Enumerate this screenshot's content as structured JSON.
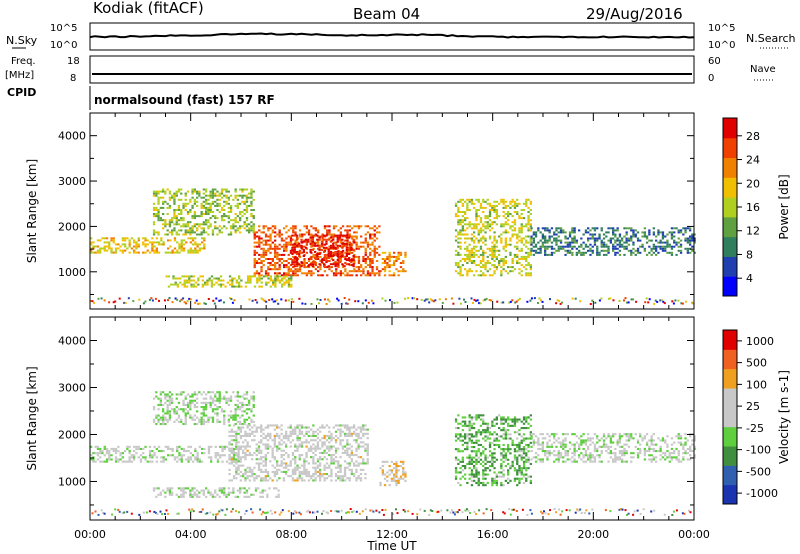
{
  "header": {
    "station": "Kodiak (fitACF)",
    "beam": "Beam 04",
    "date": "29/Aug/2016"
  },
  "strip": {
    "nsky_label": "N.Sky",
    "nsky_ticks": [
      "10^5",
      "10^0"
    ],
    "nsearch_label": "N.Search",
    "nsearch_ticks": [
      "10^5",
      "10^0"
    ],
    "freq_label": "Freq.",
    "freq_unit": "[MHz]",
    "freq_ticks": [
      "18",
      "8"
    ],
    "nave_label": "Nave",
    "nave_ticks": [
      "60",
      "0"
    ],
    "cpid_label": "CPID",
    "cpid_value": "normalsound (fast) 157 RF"
  },
  "colors": {
    "power_scale": [
      "#0000ff",
      "#1f3fb0",
      "#2f7f5f",
      "#5fa040",
      "#b0d020",
      "#f0c000",
      "#f08000",
      "#f04000",
      "#e00000"
    ],
    "velocity_scale": [
      "#1a33b0",
      "#2f5faf",
      "#3f8f3f",
      "#5fcf3f",
      "#c8c8c8",
      "#c8c8c8",
      "#f0a020",
      "#f06020",
      "#e00000"
    ]
  },
  "chart_data": [
    {
      "type": "heatmap",
      "name": "power",
      "xlabel": "Time UT",
      "ylabel": "Slant Range [km]",
      "x_ticks": [
        "00:00",
        "04:00",
        "08:00",
        "12:00",
        "16:00",
        "20:00",
        "00:00"
      ],
      "ylim": [
        180,
        4500
      ],
      "y_ticks": [
        1000,
        2000,
        3000,
        4000
      ],
      "colorbar": {
        "label": "Power [dB]",
        "ticks": [
          "28",
          "24",
          "20",
          "16",
          "12",
          "8",
          "4"
        ],
        "range": [
          0,
          30
        ]
      },
      "echo_regions": [
        {
          "t_start": 0.0,
          "t_end": 4.5,
          "range_min": 1400,
          "range_max": 1750,
          "power": 18
        },
        {
          "t_start": 2.5,
          "t_end": 6.5,
          "range_min": 1800,
          "range_max": 2800,
          "power": 14
        },
        {
          "t_start": 6.5,
          "t_end": 11.5,
          "range_min": 900,
          "range_max": 2000,
          "power": 24
        },
        {
          "t_start": 8.0,
          "t_end": 10.5,
          "range_min": 1100,
          "range_max": 1800,
          "power": 28
        },
        {
          "t_start": 3.0,
          "t_end": 8.0,
          "range_min": 650,
          "range_max": 900,
          "power": 16
        },
        {
          "t_start": 11.5,
          "t_end": 12.5,
          "range_min": 900,
          "range_max": 1400,
          "power": 22
        },
        {
          "t_start": 14.5,
          "t_end": 17.5,
          "range_min": 900,
          "range_max": 2600,
          "power": 16
        },
        {
          "t_start": 17.5,
          "t_end": 24.0,
          "range_min": 1350,
          "range_max": 1950,
          "power": 8
        }
      ]
    },
    {
      "type": "heatmap",
      "name": "velocity",
      "xlabel": "Time UT",
      "ylabel": "Slant Range [km]",
      "x_ticks": [
        "00:00",
        "04:00",
        "08:00",
        "12:00",
        "16:00",
        "20:00",
        "00:00"
      ],
      "ylim": [
        180,
        4500
      ],
      "y_ticks": [
        1000,
        2000,
        3000,
        4000
      ],
      "colorbar": {
        "label": "Velocity [m s-1]",
        "ticks": [
          "1000",
          "500",
          "100",
          "25",
          "-25",
          "-100",
          "-500",
          "-1000"
        ],
        "range": [
          -1000,
          1000
        ]
      },
      "echo_regions": [
        {
          "t_start": 0.0,
          "t_end": 6.0,
          "range_min": 1400,
          "range_max": 1750,
          "velocity": 0
        },
        {
          "t_start": 2.5,
          "t_end": 6.5,
          "range_min": 2200,
          "range_max": 2900,
          "velocity": -80
        },
        {
          "t_start": 5.5,
          "t_end": 11.0,
          "range_min": 1000,
          "range_max": 2200,
          "velocity": 100
        },
        {
          "t_start": 2.5,
          "t_end": 7.5,
          "range_min": 650,
          "range_max": 850,
          "velocity": 0
        },
        {
          "t_start": 11.5,
          "t_end": 12.5,
          "range_min": 900,
          "range_max": 1400,
          "velocity": 300
        },
        {
          "t_start": 14.5,
          "t_end": 17.5,
          "range_min": 900,
          "range_max": 2400,
          "velocity": -300
        },
        {
          "t_start": 17.5,
          "t_end": 24.0,
          "range_min": 1400,
          "range_max": 2000,
          "velocity": 0
        }
      ]
    }
  ]
}
